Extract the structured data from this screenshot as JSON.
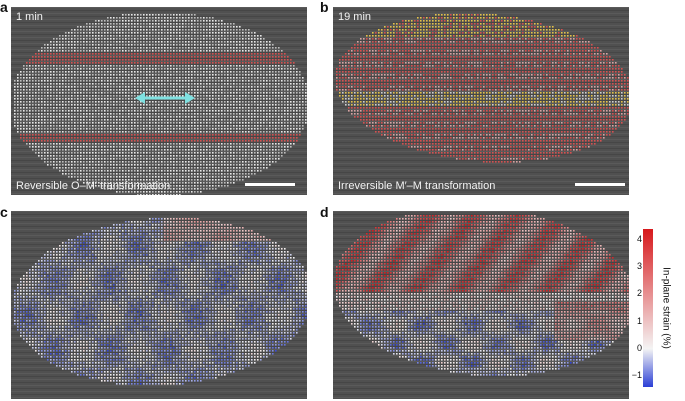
{
  "panels": [
    {
      "letter": "a",
      "time": "1 min",
      "caption": "Reversible O–M′ transformation"
    },
    {
      "letter": "b",
      "time": "19 min",
      "caption": "Irreversible M′–M transformation"
    },
    {
      "letter": "c"
    },
    {
      "letter": "d"
    }
  ],
  "colorbar": {
    "label": "In-plane strain (%)",
    "ticks": [
      "4",
      "3",
      "2",
      "1",
      "0",
      "−1"
    ],
    "min": -1.4,
    "max": 4.4
  },
  "colors": {
    "background_tem": "#505050",
    "atom_white": "#e8e8e8",
    "stripe_red": "#d65050",
    "stripe_yellow": "#e3c04a",
    "arrow_cyan": "#7fe0e0",
    "strain_red": "#d7191c",
    "strain_white": "#f4f4f4",
    "strain_blue": "#2b3fd6"
  }
}
